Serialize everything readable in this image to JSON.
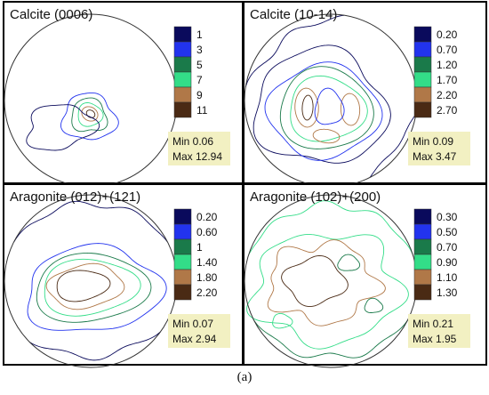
{
  "caption": "(a)",
  "contour_colors": [
    "#0a0a5c",
    "#2233ee",
    "#1a7a4a",
    "#33dd88",
    "#b07848",
    "#4a2a14"
  ],
  "chart_data": [
    {
      "type": "pole-figure",
      "title": "Calcite (0006)",
      "legend": [
        "1",
        "3",
        "5",
        "7",
        "9",
        "11"
      ],
      "min_label": "Min 0.06",
      "max_label": "Max 12.94"
    },
    {
      "type": "pole-figure",
      "title": "Calcite (10-14)",
      "legend": [
        "0.20",
        "0.70",
        "1.20",
        "1.70",
        "2.20",
        "2.70"
      ],
      "min_label": "Min 0.09",
      "max_label": "Max 3.47"
    },
    {
      "type": "pole-figure",
      "title": "Aragonite (012)+(121)",
      "legend": [
        "0.20",
        "0.60",
        "1",
        "1.40",
        "1.80",
        "2.20"
      ],
      "min_label": "Min 0.07",
      "max_label": "Max 2.94"
    },
    {
      "type": "pole-figure",
      "title": "Aragonite (102)+(200)",
      "legend": [
        "0.30",
        "0.50",
        "0.70",
        "0.90",
        "1.10",
        "1.30"
      ],
      "min_label": "Min 0.21",
      "max_label": "Max 1.95"
    }
  ]
}
